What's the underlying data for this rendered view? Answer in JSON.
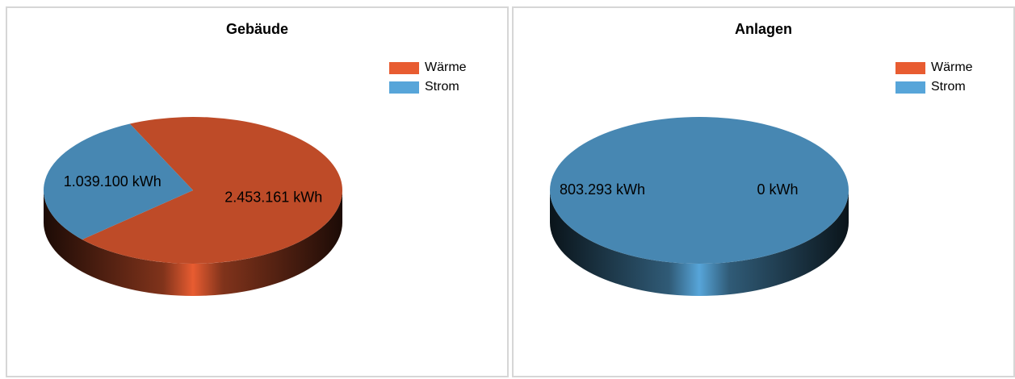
{
  "chart_data": [
    {
      "type": "pie",
      "title": "Gebäude",
      "legend": "top-right",
      "series": [
        {
          "name": "Wärme",
          "value": 2453161,
          "label": "2.453.161 kWh",
          "color": "#E85C31"
        },
        {
          "name": "Strom",
          "value": 1039100,
          "label": "1.039.100 kWh",
          "color": "#57A5D9"
        }
      ]
    },
    {
      "type": "pie",
      "title": "Anlagen",
      "legend": "top-right",
      "series": [
        {
          "name": "Wärme",
          "value": 0,
          "label": "0 kWh",
          "color": "#E85C31"
        },
        {
          "name": "Strom",
          "value": 803293,
          "label": "803.293 kWh",
          "color": "#57A5D9"
        }
      ]
    }
  ]
}
